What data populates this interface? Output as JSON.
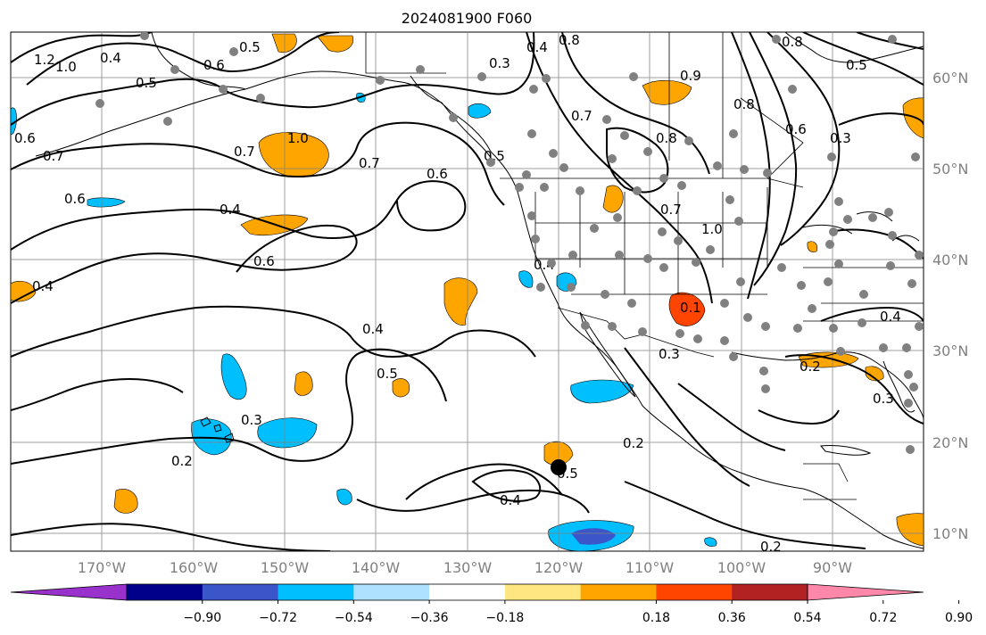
{
  "title": "2024081900 F060",
  "map": {
    "lat_labels": [
      "60°N",
      "50°N",
      "40°N",
      "30°N",
      "20°N",
      "10°N"
    ],
    "lon_labels": [
      "170°W",
      "160°W",
      "150°W",
      "140°W",
      "130°W",
      "120°W",
      "110°W",
      "100°W",
      "90°W"
    ],
    "contour_labels": [
      "1.2",
      "1.0",
      "0.5",
      "0.6",
      "0.5",
      "0.3",
      "0.4",
      "0.8",
      "0.9",
      "0.8",
      "0.5",
      "0.6",
      "0.3",
      "0.7",
      "0.6",
      "0.7",
      "0.8",
      "1.0",
      "0.7",
      "0.6",
      "0.4",
      "0.6",
      "0.4",
      "0.7",
      "0.6",
      "0.4",
      "0.4",
      "0.5",
      "0.3",
      "0.2",
      "0.4",
      "0.5",
      "0.2",
      "0.3",
      "0.1",
      "0.2",
      "0.3",
      "0.4",
      "0.2",
      "0.5",
      "0.7",
      "0.8",
      "1.0",
      "0.4"
    ],
    "shading_colors": {
      "neg_strong": "#3a56c8",
      "neg": "#00bfff",
      "neg_light": "#aee0ff",
      "pos": "#ffa500",
      "pos_strong": "#ff4500"
    },
    "station_marker_color": "#808080",
    "storm_marker_color": "#000000"
  },
  "colorbar": {
    "tick_labels": [
      "−0.90",
      "−0.72",
      "−0.54",
      "−0.36",
      "−0.18",
      "0.18",
      "0.36",
      "0.54",
      "0.72",
      "0.90"
    ],
    "colors": [
      "#9932cc",
      "#00008b",
      "#3a56c8",
      "#00bfff",
      "#aee0ff",
      "#ffffff",
      "#ffe680",
      "#ffa500",
      "#ff4500",
      "#b22222",
      "#ff88aa"
    ]
  }
}
